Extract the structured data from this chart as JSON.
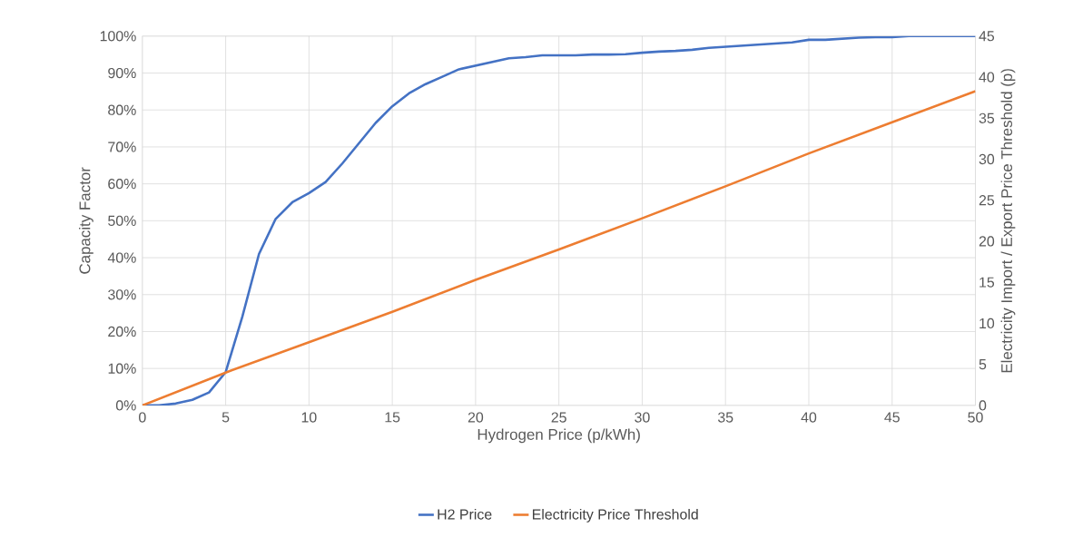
{
  "chart_data": {
    "type": "line",
    "xlabel": "Hydrogen Price (p/kWh)",
    "ylabel": "Capacity Factor",
    "y2label": "Electricity Import / Export Price Threshold (p)",
    "xlim": [
      0,
      50
    ],
    "xticks": [
      0,
      5,
      10,
      15,
      20,
      25,
      30,
      35,
      40,
      45,
      50
    ],
    "ylim": [
      0,
      100
    ],
    "yticks": [
      {
        "value": 0,
        "label": "0%"
      },
      {
        "value": 10,
        "label": "10%"
      },
      {
        "value": 20,
        "label": "20%"
      },
      {
        "value": 30,
        "label": "30%"
      },
      {
        "value": 40,
        "label": "40%"
      },
      {
        "value": 50,
        "label": "50%"
      },
      {
        "value": 60,
        "label": "60%"
      },
      {
        "value": 70,
        "label": "70%"
      },
      {
        "value": 80,
        "label": "80%"
      },
      {
        "value": 90,
        "label": "90%"
      },
      {
        "value": 100,
        "label": "100%"
      }
    ],
    "y2lim": [
      0,
      45
    ],
    "y2ticks": [
      0,
      5,
      10,
      15,
      20,
      25,
      30,
      35,
      40,
      45
    ],
    "grid": true,
    "legend": "bottom",
    "marker": "none",
    "line_style": "solid",
    "series": [
      {
        "name": "H2 Price",
        "color": "#4472c4",
        "x": [
          0,
          1,
          2,
          3,
          4,
          5,
          6,
          7,
          8,
          9,
          10,
          11,
          12,
          13,
          14,
          15,
          16,
          17,
          18,
          19,
          20,
          21,
          22,
          23,
          24,
          25,
          26,
          27,
          28,
          29,
          30,
          31,
          32,
          33,
          34,
          35,
          36,
          37,
          38,
          39,
          40,
          41,
          42,
          43,
          44,
          45,
          46,
          47,
          48,
          49,
          50
        ],
        "values": [
          0,
          0,
          0.5,
          1.5,
          3.5,
          9,
          24,
          41,
          50.5,
          55,
          57.5,
          60.5,
          65.5,
          71,
          76.5,
          81,
          84.5,
          87,
          89,
          91,
          92,
          93,
          94,
          94.3,
          94.8,
          94.8,
          94.8,
          95,
          95,
          95.1,
          95.5,
          95.8,
          96,
          96.3,
          96.8,
          97.1,
          97.4,
          97.7,
          98,
          98.3,
          99,
          99,
          99.3,
          99.6,
          99.7,
          99.7,
          100,
          100,
          100,
          100,
          100
        ]
      },
      {
        "name": "Electricity Price Threshold",
        "color": "#ed7d31",
        "axis": "y2",
        "x": [
          0,
          5,
          10,
          15,
          20,
          25,
          30,
          35,
          40,
          45,
          50
        ],
        "values": [
          0,
          4,
          7.7,
          11.4,
          15.3,
          19,
          22.8,
          26.7,
          30.7,
          34.5,
          38.3
        ]
      }
    ]
  }
}
